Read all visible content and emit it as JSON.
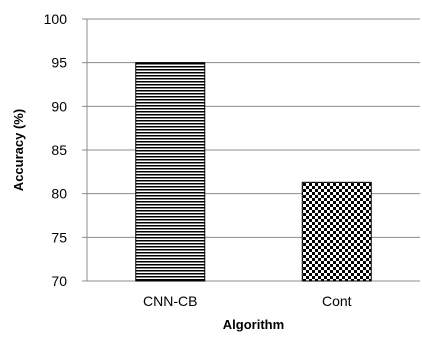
{
  "chart_data": {
    "type": "bar",
    "title": "",
    "xlabel": "Algorithm",
    "ylabel": "Accuracy (%)",
    "categories": [
      "CNN-CB",
      "Cont"
    ],
    "values": [
      95,
      81.3
    ],
    "ylim": [
      70,
      100
    ],
    "yticks": [
      70,
      75,
      80,
      85,
      90,
      95,
      100
    ],
    "grid": true,
    "bar_patterns": [
      "horizontal-stripes",
      "checkerboard"
    ]
  }
}
